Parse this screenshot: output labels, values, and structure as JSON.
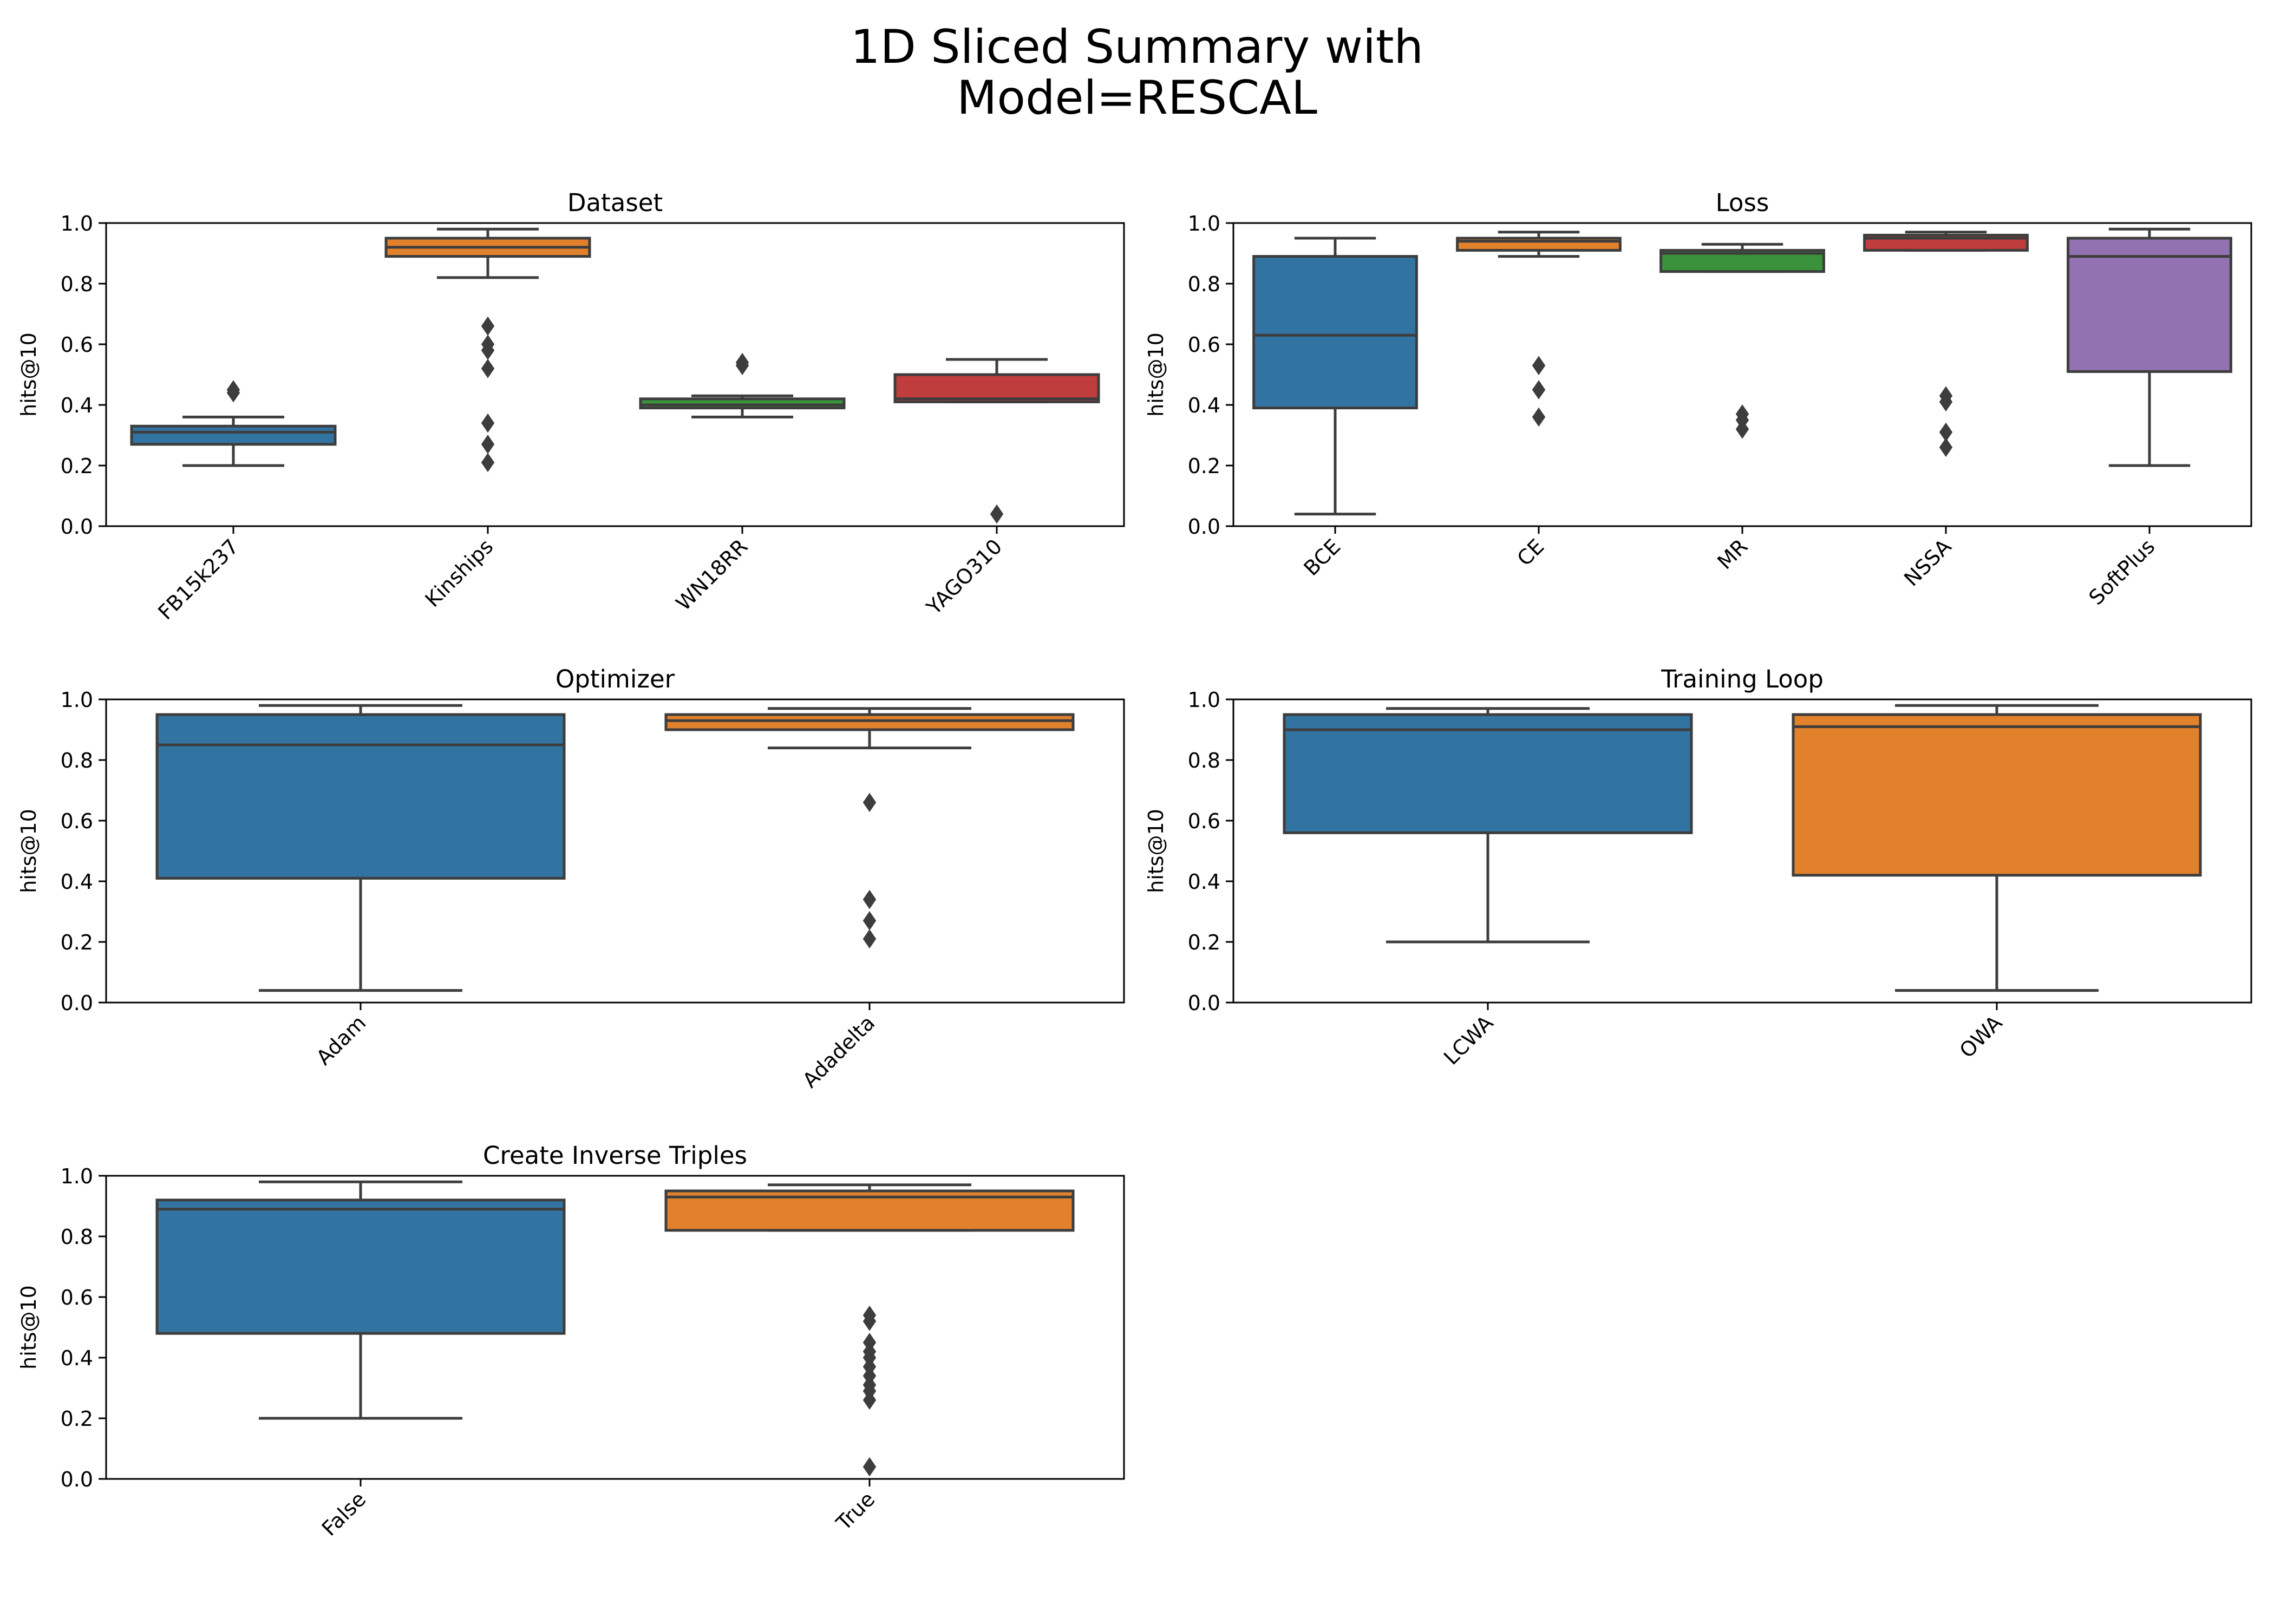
{
  "figure": {
    "title_line1": "1D Sliced Summary with",
    "title_line2": "Model=RESCAL"
  },
  "chart_data": [
    {
      "type": "box",
      "title": "Dataset",
      "xlabel": "",
      "ylabel": "hits@10",
      "ylim": [
        0,
        1.0
      ],
      "yticks": [
        "0.0",
        "0.2",
        "0.4",
        "0.6",
        "0.8",
        "1.0"
      ],
      "categories": [
        "FB15k237",
        "Kinships",
        "WN18RR",
        "YAGO310"
      ],
      "colors": [
        "#3274a1",
        "#e1812c",
        "#3a923a",
        "#c03d3e"
      ],
      "boxes": [
        {
          "whisker_low": 0.2,
          "q1": 0.27,
          "median": 0.31,
          "q3": 0.33,
          "whisker_high": 0.36,
          "outliers": [
            0.44,
            0.45
          ]
        },
        {
          "whisker_low": 0.82,
          "q1": 0.89,
          "median": 0.92,
          "q3": 0.95,
          "whisker_high": 0.98,
          "outliers": [
            0.66,
            0.6,
            0.58,
            0.52,
            0.34,
            0.27,
            0.21
          ]
        },
        {
          "whisker_low": 0.36,
          "q1": 0.39,
          "median": 0.4,
          "q3": 0.42,
          "whisker_high": 0.43,
          "outliers": [
            0.53,
            0.54
          ]
        },
        {
          "whisker_low": 0.41,
          "q1": 0.41,
          "median": 0.42,
          "q3": 0.5,
          "whisker_high": 0.55,
          "outliers": [
            0.04
          ]
        }
      ]
    },
    {
      "type": "box",
      "title": "Loss",
      "xlabel": "",
      "ylabel": "hits@10",
      "ylim": [
        0,
        1.0
      ],
      "yticks": [
        "0.0",
        "0.2",
        "0.4",
        "0.6",
        "0.8",
        "1.0"
      ],
      "categories": [
        "BCE",
        "CE",
        "MR",
        "NSSA",
        "SoftPlus"
      ],
      "colors": [
        "#3274a1",
        "#e1812c",
        "#3a923a",
        "#c03d3e",
        "#9372b2"
      ],
      "boxes": [
        {
          "whisker_low": 0.04,
          "q1": 0.39,
          "median": 0.63,
          "q3": 0.89,
          "whisker_high": 0.95,
          "outliers": []
        },
        {
          "whisker_low": 0.89,
          "q1": 0.91,
          "median": 0.94,
          "q3": 0.95,
          "whisker_high": 0.97,
          "outliers": [
            0.53,
            0.45,
            0.36
          ]
        },
        {
          "whisker_low": 0.84,
          "q1": 0.84,
          "median": 0.9,
          "q3": 0.91,
          "whisker_high": 0.93,
          "outliers": [
            0.37,
            0.35,
            0.32
          ]
        },
        {
          "whisker_low": 0.91,
          "q1": 0.91,
          "median": 0.95,
          "q3": 0.96,
          "whisker_high": 0.97,
          "outliers": [
            0.43,
            0.41,
            0.31,
            0.26
          ]
        },
        {
          "whisker_low": 0.2,
          "q1": 0.51,
          "median": 0.89,
          "q3": 0.95,
          "whisker_high": 0.98,
          "outliers": []
        }
      ]
    },
    {
      "type": "box",
      "title": "Optimizer",
      "xlabel": "",
      "ylabel": "hits@10",
      "ylim": [
        0,
        1.0
      ],
      "yticks": [
        "0.0",
        "0.2",
        "0.4",
        "0.6",
        "0.8",
        "1.0"
      ],
      "categories": [
        "Adam",
        "Adadelta"
      ],
      "colors": [
        "#3274a1",
        "#e1812c"
      ],
      "boxes": [
        {
          "whisker_low": 0.04,
          "q1": 0.41,
          "median": 0.85,
          "q3": 0.95,
          "whisker_high": 0.98,
          "outliers": []
        },
        {
          "whisker_low": 0.84,
          "q1": 0.9,
          "median": 0.93,
          "q3": 0.95,
          "whisker_high": 0.97,
          "outliers": [
            0.66,
            0.34,
            0.27,
            0.21
          ]
        }
      ]
    },
    {
      "type": "box",
      "title": "Training Loop",
      "xlabel": "",
      "ylabel": "hits@10",
      "ylim": [
        0,
        1.0
      ],
      "yticks": [
        "0.0",
        "0.2",
        "0.4",
        "0.6",
        "0.8",
        "1.0"
      ],
      "categories": [
        "LCWA",
        "OWA"
      ],
      "colors": [
        "#3274a1",
        "#e1812c"
      ],
      "boxes": [
        {
          "whisker_low": 0.2,
          "q1": 0.56,
          "median": 0.9,
          "q3": 0.95,
          "whisker_high": 0.97,
          "outliers": []
        },
        {
          "whisker_low": 0.04,
          "q1": 0.42,
          "median": 0.91,
          "q3": 0.95,
          "whisker_high": 0.98,
          "outliers": []
        }
      ]
    },
    {
      "type": "box",
      "title": "Create Inverse Triples",
      "xlabel": "",
      "ylabel": "hits@10",
      "ylim": [
        0,
        1.0
      ],
      "yticks": [
        "0.0",
        "0.2",
        "0.4",
        "0.6",
        "0.8",
        "1.0"
      ],
      "categories": [
        "False",
        "True"
      ],
      "colors": [
        "#3274a1",
        "#e1812c"
      ],
      "boxes": [
        {
          "whisker_low": 0.2,
          "q1": 0.48,
          "median": 0.89,
          "q3": 0.92,
          "whisker_high": 0.98,
          "outliers": []
        },
        {
          "whisker_low": 0.82,
          "q1": 0.82,
          "median": 0.93,
          "q3": 0.95,
          "whisker_high": 0.97,
          "outliers": [
            0.54,
            0.52,
            0.45,
            0.42,
            0.4,
            0.37,
            0.34,
            0.31,
            0.29,
            0.26,
            0.04
          ]
        }
      ]
    }
  ]
}
